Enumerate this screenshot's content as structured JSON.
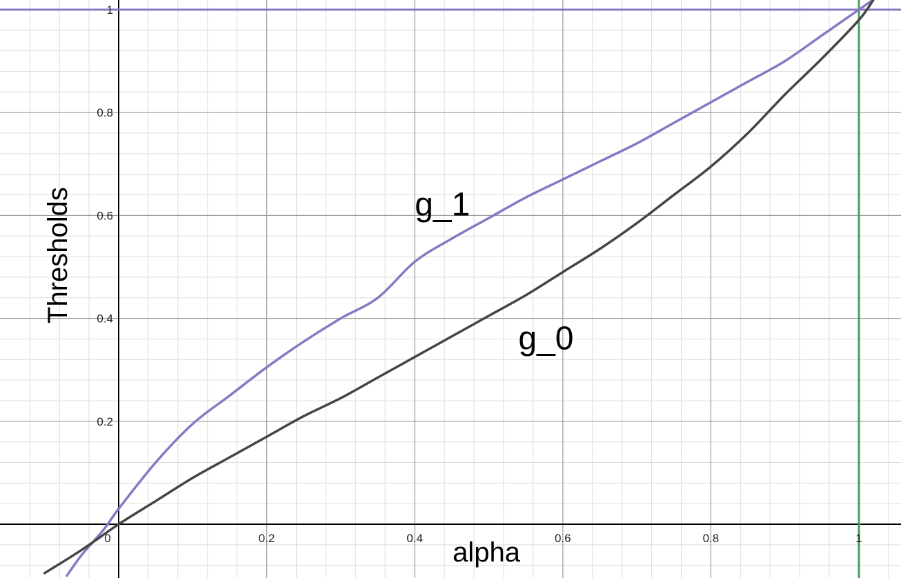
{
  "chart_data": {
    "type": "line",
    "xlabel": "alpha",
    "ylabel": "Thresholds",
    "xlim": [
      -0.1,
      1.06
    ],
    "ylim": [
      -0.1,
      1.02
    ],
    "grid": true,
    "x_ticks": [
      {
        "value": 0,
        "label": "0"
      },
      {
        "value": 0.2,
        "label": "0.2"
      },
      {
        "value": 0.4,
        "label": "0.4"
      },
      {
        "value": 0.6,
        "label": "0.6"
      },
      {
        "value": 0.8,
        "label": "0.8"
      },
      {
        "value": 1,
        "label": "1"
      }
    ],
    "y_ticks": [
      {
        "value": 0.2,
        "label": "0.2"
      },
      {
        "value": 0.4,
        "label": "0.4"
      },
      {
        "value": 0.6,
        "label": "0.6"
      },
      {
        "value": 0.8,
        "label": "0.8"
      },
      {
        "value": 1,
        "label": "1"
      }
    ],
    "series": [
      {
        "name": "g_1",
        "color": "#8878c3",
        "x": [
          -0.07,
          -0.05,
          -0.02,
          0,
          0.05,
          0.1,
          0.15,
          0.2,
          0.25,
          0.3,
          0.35,
          0.4,
          0.45,
          0.5,
          0.55,
          0.6,
          0.65,
          0.7,
          0.75,
          0.8,
          0.85,
          0.9,
          0.95,
          1.0,
          1.03
        ],
        "y": [
          -0.1,
          -0.06,
          -0.01,
          0.03,
          0.12,
          0.195,
          0.25,
          0.305,
          0.355,
          0.4,
          0.44,
          0.51,
          0.555,
          0.595,
          0.635,
          0.67,
          0.705,
          0.74,
          0.78,
          0.82,
          0.86,
          0.9,
          0.95,
          1.0,
          1.03
        ]
      },
      {
        "name": "g_0",
        "color": "#454545",
        "x": [
          -0.1,
          -0.05,
          0,
          0.05,
          0.1,
          0.15,
          0.2,
          0.25,
          0.3,
          0.35,
          0.4,
          0.45,
          0.5,
          0.55,
          0.6,
          0.65,
          0.7,
          0.75,
          0.8,
          0.85,
          0.9,
          0.95,
          1.0,
          1.02
        ],
        "y": [
          -0.095,
          -0.05,
          0.0,
          0.045,
          0.09,
          0.13,
          0.17,
          0.21,
          0.245,
          0.285,
          0.325,
          0.365,
          0.405,
          0.445,
          0.49,
          0.535,
          0.585,
          0.64,
          0.695,
          0.76,
          0.835,
          0.905,
          0.98,
          1.02
        ]
      }
    ],
    "reference_lines": [
      {
        "orientation": "horizontal",
        "value": 1,
        "color": "#8878c3"
      },
      {
        "orientation": "vertical",
        "value": 1,
        "color": "#4a9a5c"
      }
    ],
    "annotations": [
      {
        "text": "g_1",
        "x": 0.4,
        "y": 0.6
      },
      {
        "text": "g_0",
        "x": 0.54,
        "y": 0.34
      }
    ]
  }
}
